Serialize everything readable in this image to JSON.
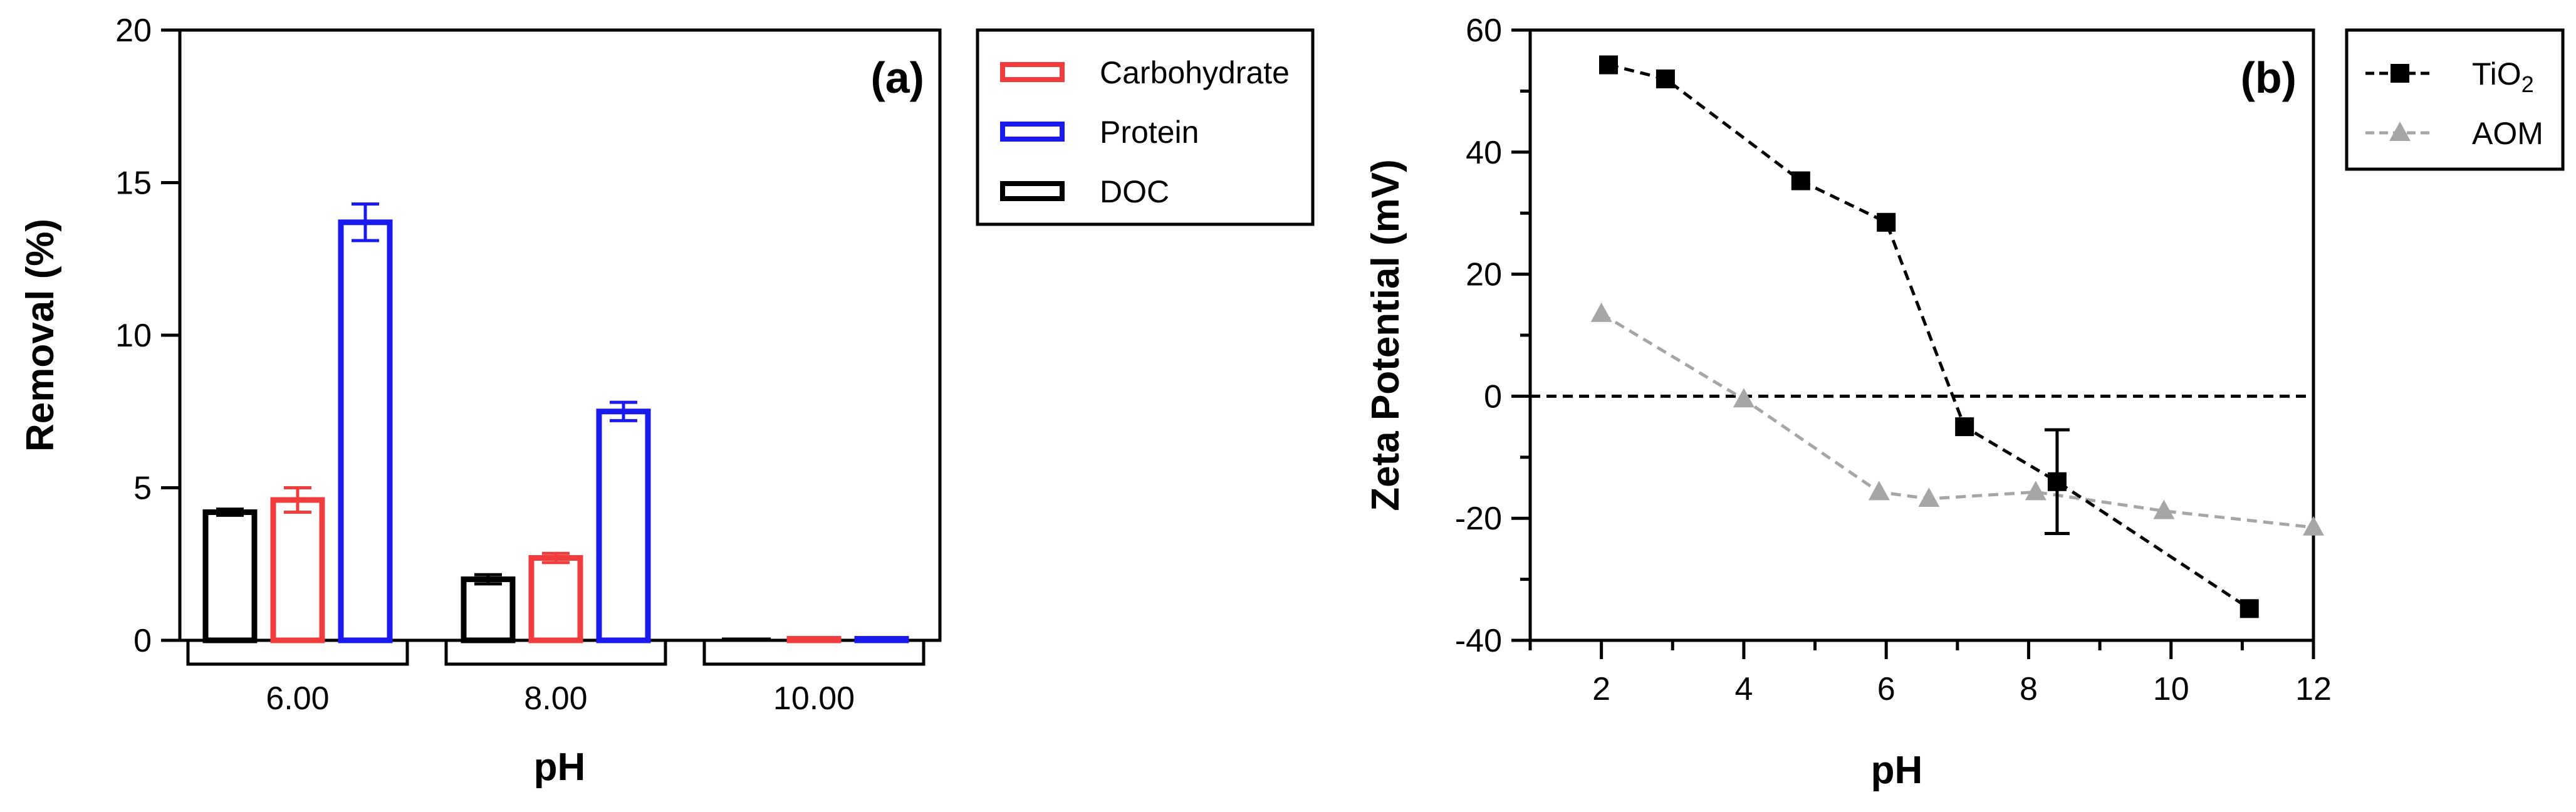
{
  "chart_data": [
    {
      "type": "bar",
      "panel_label": "(a)",
      "xlabel": "pH",
      "ylabel": "Removal (%)",
      "ylim": [
        0,
        20
      ],
      "yticks": [
        0,
        5,
        10,
        15,
        20
      ],
      "categories": [
        "6.00",
        "8.00",
        "10.00"
      ],
      "series": [
        {
          "name": "DOC",
          "color": "#000000",
          "values": [
            4.2,
            2.0,
            0.0
          ],
          "errors": [
            0.1,
            0.15,
            0.0
          ]
        },
        {
          "name": "Carbohydrate",
          "color": "#f03c3c",
          "values": [
            4.6,
            2.7,
            0.05
          ],
          "errors": [
            0.4,
            0.15,
            0.0
          ]
        },
        {
          "name": "Protein",
          "color": "#1a1aee",
          "values": [
            13.7,
            7.5,
            0.05
          ],
          "errors": [
            0.6,
            0.3,
            0.0
          ]
        }
      ],
      "legend_order": [
        "Carbohydrate",
        "Protein",
        "DOC"
      ],
      "legend_position": "outside-right",
      "grid": false
    },
    {
      "type": "line",
      "panel_label": "(b)",
      "xlabel": "pH",
      "ylabel": "Zeta Potential (mV)",
      "xlim": [
        1,
        12
      ],
      "ylim": [
        -40,
        60
      ],
      "xticks": [
        2,
        4,
        6,
        8,
        10,
        12
      ],
      "yticks": [
        -40,
        -20,
        0,
        20,
        40,
        60
      ],
      "reference_line_y": 0,
      "series": [
        {
          "name": "TiO",
          "name_subscript": "2",
          "color": "#000000",
          "marker": "square",
          "line": "dashed",
          "x": [
            2.1,
            2.9,
            4.8,
            6.0,
            7.1,
            8.4,
            11.1
          ],
          "y": [
            54.3,
            52.0,
            35.3,
            28.5,
            -5.0,
            -14.0,
            -34.8
          ],
          "errors": [
            0,
            0,
            0,
            0,
            0,
            8.5,
            0
          ]
        },
        {
          "name": "AOM",
          "color": "#a6a6a6",
          "marker": "triangle",
          "line": "dashed",
          "x": [
            2.0,
            4.0,
            5.9,
            6.6,
            8.1,
            9.9,
            12.0
          ],
          "y": [
            13.5,
            -0.5,
            -15.7,
            -16.8,
            -15.7,
            -18.8,
            -21.5
          ],
          "errors": [
            0,
            0,
            0,
            0,
            0,
            0,
            0
          ]
        }
      ],
      "legend_position": "outside-right",
      "grid": false
    }
  ]
}
